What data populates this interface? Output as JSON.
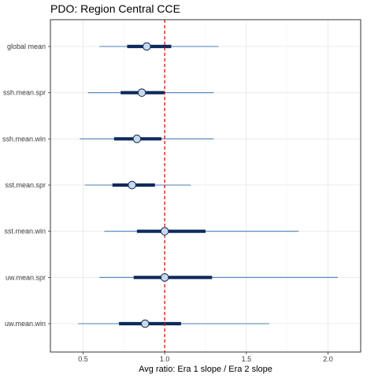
{
  "chart_data": {
    "type": "forest",
    "title": "PDO: Region Central CCE",
    "xlabel": "Avg ratio: Era 1 slope / Era 2 slope",
    "ylabel": "",
    "xlim": [
      0.3,
      2.2
    ],
    "x_ticks": [
      0.5,
      1.0,
      1.5,
      2.0
    ],
    "x_tick_labels": [
      "0.5",
      "1.0",
      "1.5",
      "2.0"
    ],
    "reference_line": 1.0,
    "grid": true,
    "categories": [
      "global mean",
      "ssh.mean.spr",
      "ssh.mean.win",
      "sst.mean.spr",
      "sst.mean.win",
      "uw.mean.spr",
      "uw.mean.win"
    ],
    "series": [
      {
        "mean": [
          0.89,
          0.86,
          0.83,
          0.8,
          1.0,
          1.0,
          0.88
        ],
        "inner_lo": [
          0.77,
          0.73,
          0.69,
          0.68,
          0.83,
          0.81,
          0.72
        ],
        "inner_hi": [
          1.04,
          1.0,
          0.98,
          0.94,
          1.25,
          1.29,
          1.1
        ],
        "outer_lo": [
          0.6,
          0.53,
          0.48,
          0.51,
          0.63,
          0.6,
          0.47
        ],
        "outer_hi": [
          1.33,
          1.3,
          1.3,
          1.16,
          1.82,
          2.06,
          1.64
        ]
      }
    ],
    "colors": {
      "outer_line": "#4a7fb8",
      "inner_line": "#0e2a5c",
      "point_fill": "#c9d9ec",
      "point_stroke": "#0e2a5c",
      "reference_line": "#ff0000",
      "grid": "#e6e6e6",
      "panel_border": "#333333"
    }
  }
}
